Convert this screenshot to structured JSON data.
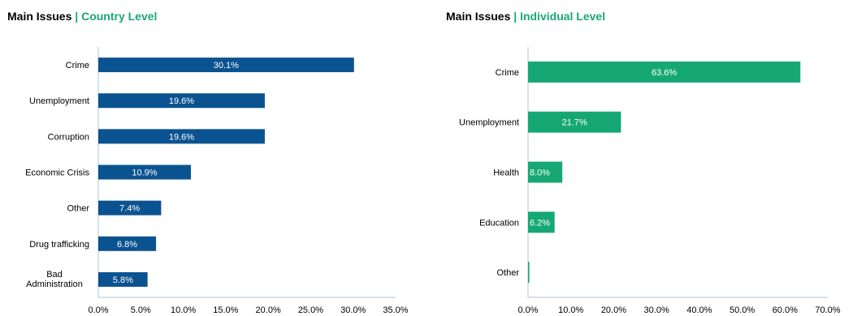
{
  "charts": [
    {
      "title_main": "Main Issues",
      "title_sep": "| ",
      "title_sub": "Country Level"
    },
    {
      "title_main": "Main Issues",
      "title_sep": "| ",
      "title_sub": "Individual Level"
    }
  ],
  "colors": {
    "country_bar": "#0b5390",
    "individual_bar": "#16a874",
    "title_accent": "#1aa874",
    "axis_line": "#a9c7dd",
    "text": "#000000",
    "label_text": "#ffffff"
  },
  "chart_data": [
    {
      "type": "bar",
      "orientation": "horizontal",
      "categories": [
        "Crime",
        "Unemployment",
        "Corruption",
        "Economic Crisis",
        "Other",
        "Drug trafficking",
        "Bad Administration"
      ],
      "values": [
        30.1,
        19.6,
        19.6,
        10.9,
        7.4,
        6.8,
        5.8
      ],
      "value_labels": [
        "30.1%",
        "19.6%",
        "19.6%",
        "10.9%",
        "7.4%",
        "6.8%",
        "5.8%"
      ],
      "xlim": [
        0,
        35
      ],
      "xticks": [
        "0.0%",
        "5.0%",
        "10.0%",
        "15.0%",
        "20.0%",
        "25.0%",
        "30.0%",
        "35.0%"
      ],
      "grid": false,
      "color": "#0b5390"
    },
    {
      "type": "bar",
      "orientation": "horizontal",
      "categories": [
        "Crime",
        "Unemployment",
        "Health",
        "Education",
        "Other"
      ],
      "values": [
        63.6,
        21.7,
        8.0,
        6.2,
        0.3
      ],
      "value_labels": [
        "63.6%",
        "21.7%",
        "8.0%",
        "6.2%",
        ""
      ],
      "xlim": [
        0,
        70
      ],
      "xticks": [
        "0.0%",
        "10.0%",
        "20.0%",
        "30.0%",
        "40.0%",
        "50.0%",
        "60.0%",
        "70.0%"
      ],
      "grid": false,
      "color": "#16a874"
    }
  ]
}
